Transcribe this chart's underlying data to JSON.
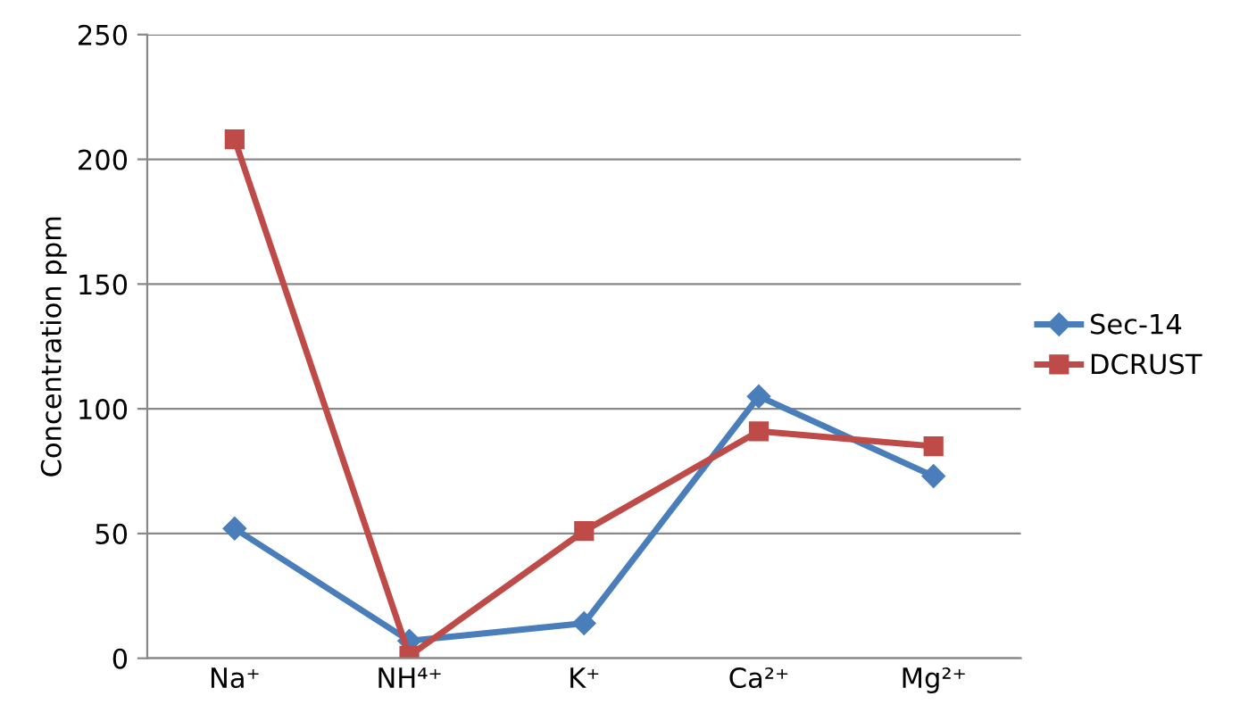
{
  "chart_data": {
    "type": "line",
    "ylabel": "Concentration ppm",
    "categories": [
      "Na⁺",
      "NH⁴⁺",
      "K⁺",
      "Ca²⁺",
      "Mg²⁺"
    ],
    "series": [
      {
        "name": "Sec-14",
        "color": "#4a7ebb",
        "marker": "diamond",
        "values": [
          52,
          7,
          14,
          105,
          73
        ]
      },
      {
        "name": "DCRUST",
        "color": "#be4b48",
        "marker": "square",
        "values": [
          208,
          1,
          51,
          91,
          85
        ]
      }
    ],
    "ylim": [
      0,
      250
    ],
    "yticks": [
      0,
      50,
      100,
      150,
      200,
      250
    ],
    "grid": "y",
    "legend": "right"
  }
}
